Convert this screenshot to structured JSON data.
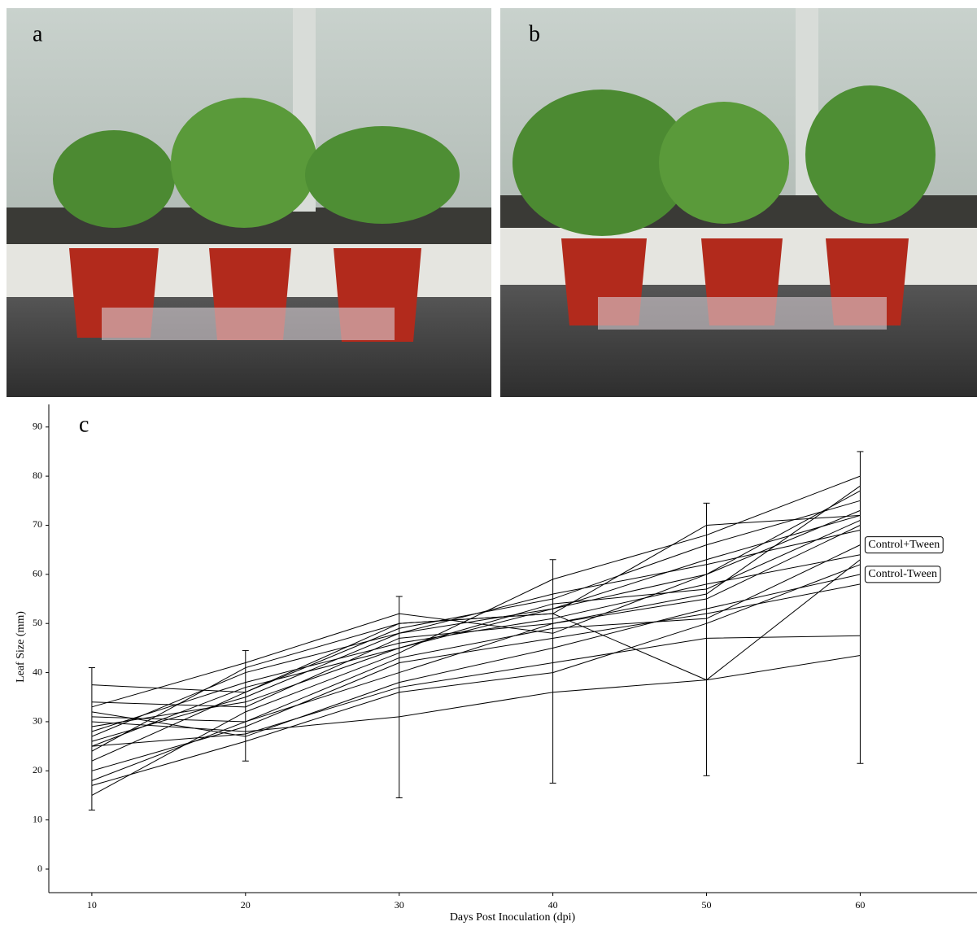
{
  "panels": [
    {
      "label": "a"
    },
    {
      "label": "b"
    }
  ],
  "chart_data": {
    "type": "line",
    "panel_label": "c",
    "x_label": "Days Post Inoculation (dpi)",
    "y_label": "Leaf Size (mm)",
    "x": [
      10,
      20,
      30,
      40,
      50,
      60
    ],
    "color": "#000000",
    "series": [
      {
        "values": [
          37.5,
          36,
          50,
          52,
          70,
          72
        ]
      },
      {
        "values": [
          34,
          33,
          47,
          50,
          56,
          78
        ]
      },
      {
        "values": [
          30,
          28,
          31,
          36,
          38.5,
          43.5
        ]
      },
      {
        "values": [
          25,
          27.5,
          37,
          42,
          47,
          47.5
        ]
      },
      {
        "values": [
          15,
          32,
          44,
          59,
          68,
          80
        ]
      },
      {
        "values": [
          18,
          30,
          40,
          50,
          55,
          70
        ]
      },
      {
        "values": [
          26,
          35,
          48,
          53,
          60,
          73
        ]
      },
      {
        "values": [
          28,
          38,
          46,
          51,
          58,
          64
        ]
      },
      {
        "values": [
          32,
          27,
          38,
          45,
          53,
          60
        ]
      },
      {
        "values": [
          24,
          41,
          50,
          52,
          38.5,
          63
        ]
      },
      {
        "values": [
          20,
          29,
          42,
          47,
          52,
          58
        ]
      },
      {
        "values": [
          22,
          36,
          49,
          55,
          66,
          75
        ]
      },
      {
        "values": [
          29,
          34,
          45,
          54,
          57,
          71
        ]
      },
      {
        "values": [
          27,
          40,
          48,
          56,
          62,
          69
        ]
      },
      {
        "values": [
          31,
          30,
          43,
          49,
          51,
          66
        ]
      },
      {
        "values": [
          33,
          42,
          52,
          48,
          60,
          77
        ]
      },
      {
        "values": [
          17,
          26,
          36,
          40,
          50,
          62
        ]
      },
      {
        "values": [
          25,
          37,
          45,
          53,
          63,
          72
        ]
      }
    ],
    "error_bars": {
      "low": [
        12,
        22,
        14.5,
        17.5,
        19,
        21.5
      ],
      "high": [
        41,
        44.5,
        55.5,
        63,
        74.5,
        85
      ]
    },
    "annotations": [
      {
        "text": "Control+Tween",
        "x": 60,
        "y": 66
      },
      {
        "text": "Control-Tween",
        "x": 60,
        "y": 60
      }
    ],
    "xlim": [
      7.2,
      67.6
    ],
    "ylim": [
      -4.8,
      94.6
    ],
    "xticks": [
      10,
      20,
      30,
      40,
      50,
      60
    ],
    "yticks": [
      0,
      10,
      20,
      30,
      40,
      50,
      60,
      70,
      80,
      90
    ],
    "grid": false
  }
}
